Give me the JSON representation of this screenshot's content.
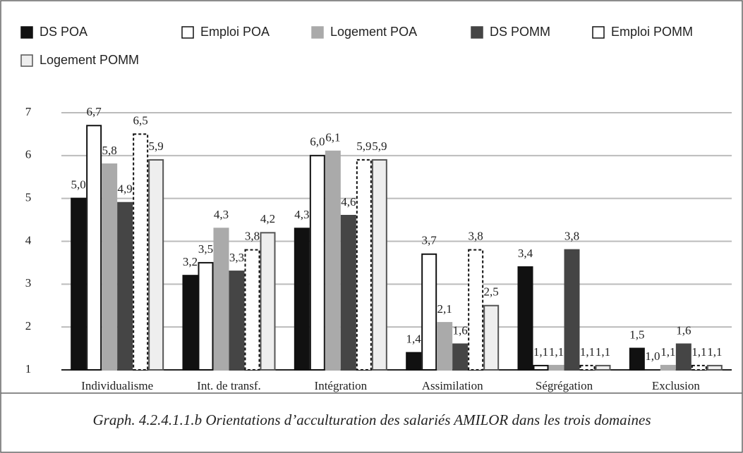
{
  "chart_data": {
    "type": "bar",
    "caption": "Graph. 4.2.4.1.1.b Orientations d’acculturation des salariés AMILOR dans les trois domaines",
    "categories": [
      "Individualisme",
      "Int. de transf.",
      "Intégration",
      "Assimilation",
      "Ségrégation",
      "Exclusion"
    ],
    "series": [
      {
        "name": "DS POA",
        "color": "#111111",
        "stroke": "#111111",
        "dashed": false,
        "values": [
          5.0,
          3.2,
          4.3,
          1.4,
          3.4,
          1.5
        ],
        "value_labels": [
          "5,0",
          "3,2",
          "4,3",
          "1,4",
          "3,4",
          "1,5"
        ]
      },
      {
        "name": "Emploi POA",
        "color": "#ffffff",
        "stroke": "#111111",
        "dashed": false,
        "values": [
          6.7,
          3.5,
          6.0,
          3.7,
          1.1,
          1.0
        ],
        "value_labels": [
          "6,7",
          "3,5",
          "6,0",
          "3,7",
          "1,1",
          "1,0"
        ]
      },
      {
        "name": "Logement POA",
        "color": "#aaaaaa",
        "stroke": "#aaaaaa",
        "dashed": false,
        "values": [
          5.8,
          4.3,
          6.1,
          2.1,
          1.1,
          1.1
        ],
        "value_labels": [
          "5,8",
          "4,3",
          "6,1",
          "2,1",
          "1,1",
          "1,1"
        ]
      },
      {
        "name": "DS POMM",
        "color": "#454545",
        "stroke": "#454545",
        "dashed": false,
        "values": [
          4.9,
          3.3,
          4.6,
          1.6,
          3.8,
          1.6
        ],
        "value_labels": [
          "4,9",
          "3,3",
          "4,6",
          "1,6",
          "3,8",
          "1,6"
        ]
      },
      {
        "name": "Emploi POMM",
        "color": "#ffffff",
        "stroke": "#111111",
        "dashed": true,
        "values": [
          6.5,
          3.8,
          5.9,
          3.8,
          1.1,
          1.1
        ],
        "value_labels": [
          "6,5",
          "3,8",
          "5,9",
          "3,8",
          "1,1",
          "1,1"
        ]
      },
      {
        "name": "Logement POMM",
        "color": "#eeeeee",
        "stroke": "#555555",
        "dashed": false,
        "values": [
          5.9,
          4.2,
          5.9,
          2.5,
          1.1,
          1.1
        ],
        "value_labels": [
          "5,9",
          "4,2",
          "5,9",
          "2,5",
          "1,1",
          "1,1"
        ]
      }
    ],
    "ylim": [
      1,
      7
    ],
    "yticks": [
      1,
      2,
      3,
      4,
      5,
      6,
      7
    ],
    "grid": true
  }
}
